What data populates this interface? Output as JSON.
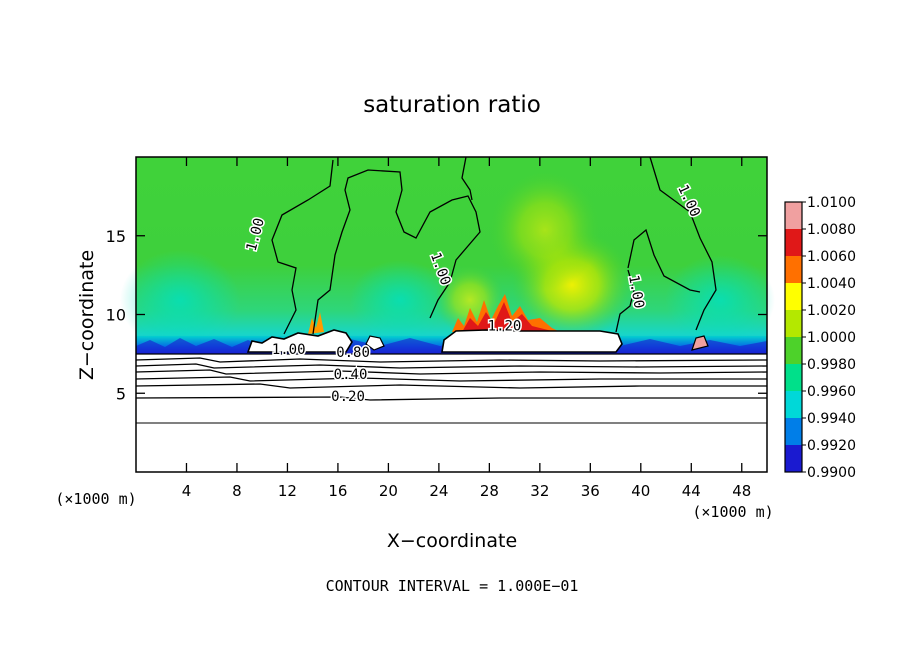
{
  "chart_data": {
    "type": "heatmap",
    "title": "saturation ratio",
    "xlabel": "X−coordinate",
    "ylabel": "Z−coordinate",
    "x_unit": "(×1000 m)",
    "z_unit": "(×1000 m)",
    "xlim": [
      0,
      50
    ],
    "ylim": [
      0,
      20
    ],
    "x_ticks": [
      4,
      8,
      12,
      16,
      20,
      24,
      28,
      32,
      36,
      40,
      44,
      48
    ],
    "y_ticks": [
      5,
      10,
      15
    ],
    "colorbar": {
      "levels": [
        "1.0100",
        "1.0080",
        "1.0060",
        "1.0040",
        "1.0020",
        "1.0000",
        "0.9980",
        "0.9960",
        "0.9940",
        "0.9920",
        "0.9900"
      ],
      "colors": [
        "#f0a0a0",
        "#e01818",
        "#ff7000",
        "#ffff00",
        "#b4e800",
        "#4dd22a",
        "#00e08a",
        "#00d8d8",
        "#007ee8",
        "#1a1ad0",
        "#6e0aa8"
      ]
    },
    "contour_labels": [
      {
        "text": "1.00",
        "x": 9.8,
        "z": 15.0,
        "rotate": -75
      },
      {
        "text": "1.00",
        "x": 23.8,
        "z": 12.8,
        "rotate": 70
      },
      {
        "text": "1.00",
        "x": 39.3,
        "z": 11.4,
        "rotate": 80
      },
      {
        "text": "1.00",
        "x": 43.5,
        "z": 17.1,
        "rotate": 65
      },
      {
        "text": "1.20",
        "x": 29.2,
        "z": 9.0,
        "rotate": 0
      },
      {
        "text": "1.00",
        "x": 12.1,
        "z": 7.5,
        "rotate": 0
      },
      {
        "text": "0.80",
        "x": 17.2,
        "z": 7.3,
        "rotate": 0
      },
      {
        "text": "0.40",
        "x": 17.0,
        "z": 5.9,
        "rotate": 0
      },
      {
        "text": "0.20",
        "x": 16.8,
        "z": 4.5,
        "rotate": 0
      }
    ],
    "grid": false,
    "legend_position": "right"
  },
  "footer": {
    "contour_interval": "CONTOUR INTERVAL = 1.000E−01"
  }
}
